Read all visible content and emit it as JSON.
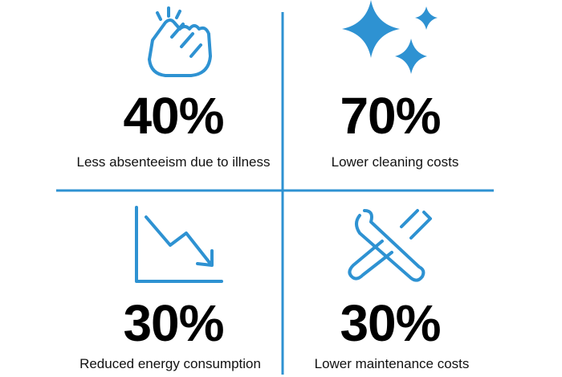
{
  "stats": [
    {
      "value": "40%",
      "label": "Less absenteeism due to illness"
    },
    {
      "value": "70%",
      "label": "Lower cleaning costs"
    },
    {
      "value": "30%",
      "label": "Reduced energy consumption"
    },
    {
      "value": "30%",
      "label": "Lower maintenance costs"
    }
  ]
}
